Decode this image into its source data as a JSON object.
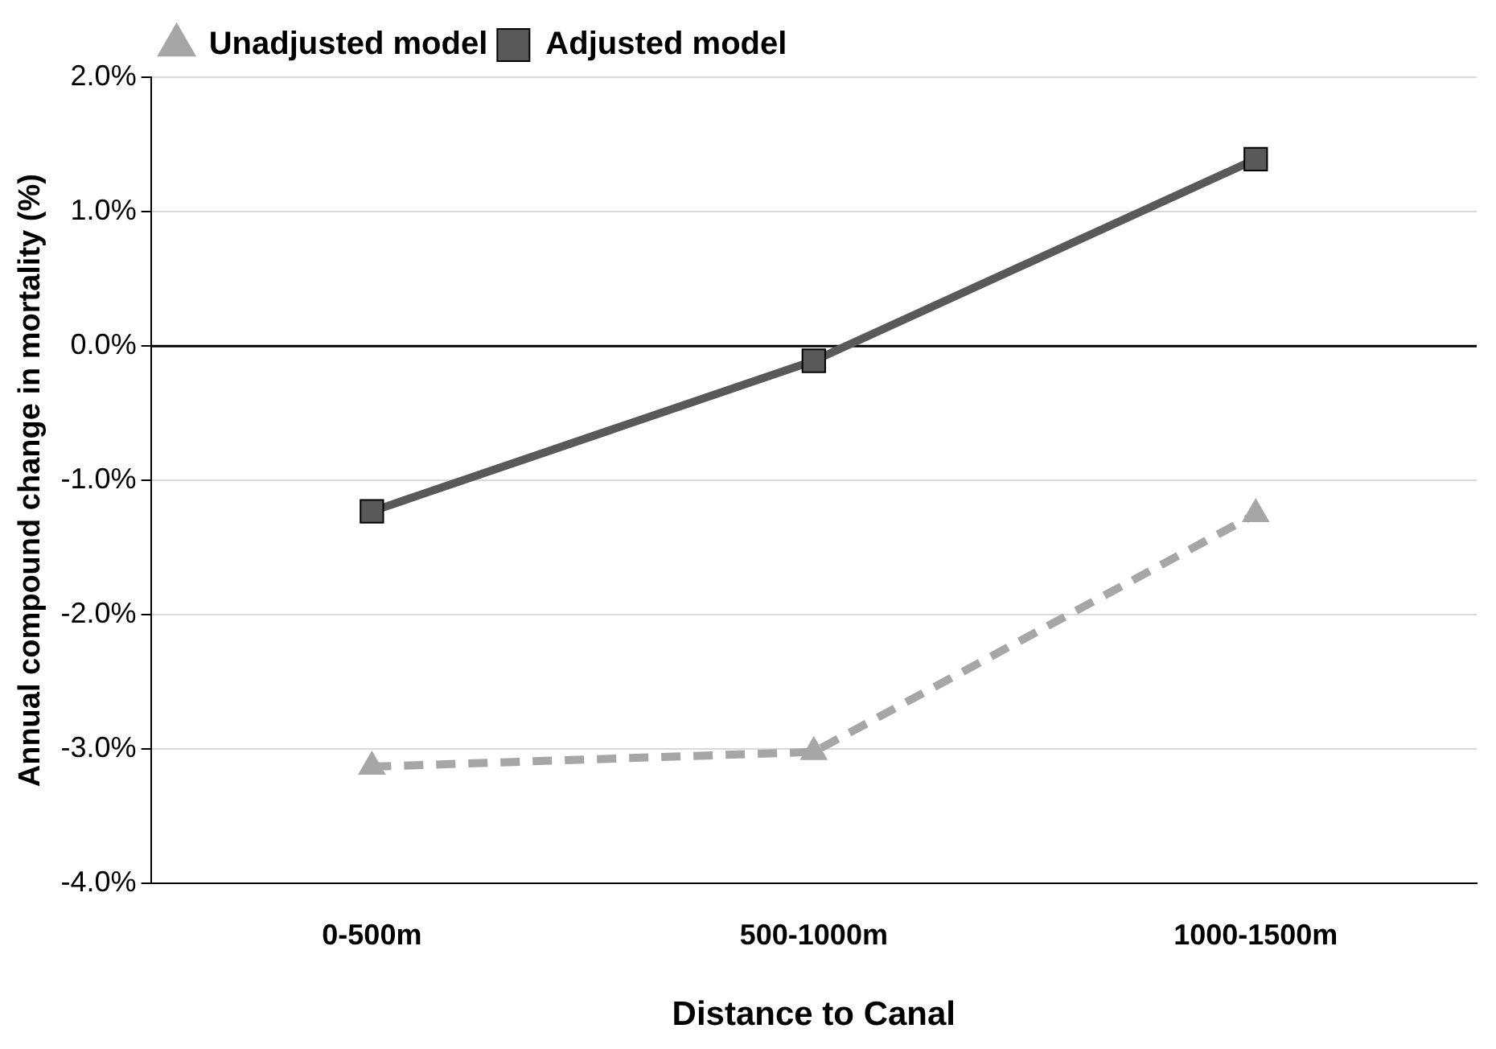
{
  "chart_data": {
    "type": "line",
    "xlabel": "Distance to Canal",
    "ylabel": "Annual compound change in mortality (%)",
    "categories": [
      "0-500m",
      "500-1000m",
      "1000-1500m"
    ],
    "series": [
      {
        "name": "Unadjusted model",
        "color": "#a6a6a6",
        "values": [
          -3.13,
          -3.02,
          -1.25
        ],
        "marker": "triangle",
        "line_style": "dashed"
      },
      {
        "name": "Adjusted model",
        "color": "#595959",
        "values": [
          -1.23,
          -0.11,
          1.39
        ],
        "marker": "square",
        "line_style": "solid"
      }
    ],
    "ylim": [
      -4,
      2
    ],
    "yticks": [
      {
        "value": -4,
        "label": "-4.0%"
      },
      {
        "value": -3,
        "label": "-3.0%"
      },
      {
        "value": -2,
        "label": "-2.0%"
      },
      {
        "value": -1,
        "label": "-1.0%"
      },
      {
        "value": 0,
        "label": "0.0%"
      },
      {
        "value": 1,
        "label": "1.0%"
      },
      {
        "value": 2,
        "label": "2.0%"
      }
    ],
    "ref_lines": [
      {
        "axis": "y",
        "value": 0,
        "color": "#000000"
      }
    ],
    "grid": "y",
    "legend": "top left"
  }
}
